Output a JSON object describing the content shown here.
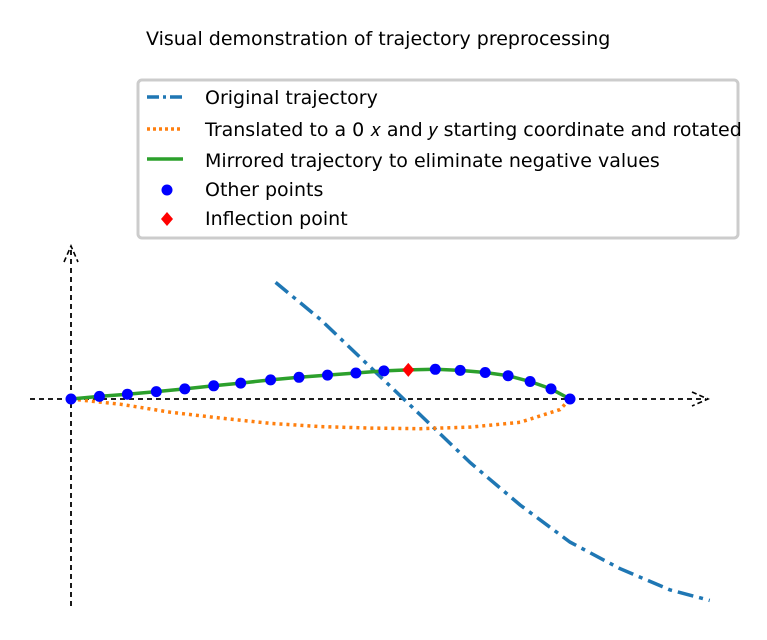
{
  "chart_data": {
    "type": "line",
    "title": "Visual demonstration of trajectory preprocessing",
    "xlabel": "",
    "ylabel": "",
    "grid": false,
    "legend_position": "top-right",
    "axes": {
      "xlim": [
        -0.07,
        1.3
      ],
      "ylim": [
        -0.4,
        0.3
      ],
      "style": "dashed arrows through origin",
      "ticks_shown": false
    },
    "legend": [
      {
        "label": "Original trajectory",
        "style": "dash-dot",
        "color": "#1f77b4"
      },
      {
        "label": "Translated to a 0 𝑥 and 𝑦 starting coordinate and rotated",
        "style": "dotted",
        "color": "#ff7f0e"
      },
      {
        "label": "Mirrored trajectory to eliminate negative values",
        "style": "solid",
        "color": "#2ca02c"
      },
      {
        "label": "Other points",
        "style": "circle-marker",
        "color": "#0000ff"
      },
      {
        "label": "Inflection point",
        "style": "diamond-marker",
        "color": "#ff0000"
      }
    ],
    "series": [
      {
        "name": "Original trajectory",
        "color": "#1f77b4",
        "style": "dash-dot",
        "points": [
          [
            0.41,
            0.22
          ],
          [
            0.5,
            0.15
          ],
          [
            0.6,
            0.06
          ],
          [
            0.7,
            -0.03
          ],
          [
            0.8,
            -0.12
          ],
          [
            0.9,
            -0.2
          ],
          [
            1.0,
            -0.27
          ],
          [
            1.1,
            -0.32
          ],
          [
            1.2,
            -0.36
          ],
          [
            1.28,
            -0.38
          ]
        ]
      },
      {
        "name": "Translated to a 0 𝑥 and 𝑦 starting coordinate and rotated",
        "color": "#ff7f0e",
        "style": "dotted",
        "points": [
          [
            0.0,
            0.0
          ],
          [
            0.1,
            -0.01
          ],
          [
            0.2,
            -0.025
          ],
          [
            0.3,
            -0.036
          ],
          [
            0.4,
            -0.046
          ],
          [
            0.5,
            -0.052
          ],
          [
            0.6,
            -0.055
          ],
          [
            0.7,
            -0.056
          ],
          [
            0.8,
            -0.053
          ],
          [
            0.9,
            -0.044
          ],
          [
            0.98,
            -0.02
          ],
          [
            1.0,
            0.0
          ]
        ]
      },
      {
        "name": "Mirrored trajectory to eliminate negative values",
        "color": "#2ca02c",
        "style": "solid",
        "points": [
          [
            0.0,
            0.0
          ],
          [
            0.057,
            0.005
          ],
          [
            0.113,
            0.009
          ],
          [
            0.171,
            0.014
          ],
          [
            0.228,
            0.019
          ],
          [
            0.286,
            0.025
          ],
          [
            0.34,
            0.03
          ],
          [
            0.4,
            0.036
          ],
          [
            0.457,
            0.041
          ],
          [
            0.514,
            0.045
          ],
          [
            0.571,
            0.049
          ],
          [
            0.627,
            0.053
          ],
          [
            0.676,
            0.055
          ],
          [
            0.73,
            0.056
          ],
          [
            0.78,
            0.054
          ],
          [
            0.83,
            0.05
          ],
          [
            0.876,
            0.044
          ],
          [
            0.92,
            0.033
          ],
          [
            0.962,
            0.019
          ],
          [
            1.0,
            0.0
          ]
        ]
      }
    ],
    "other_points": [
      [
        0.0,
        0.0
      ],
      [
        0.057,
        0.005
      ],
      [
        0.113,
        0.009
      ],
      [
        0.171,
        0.014
      ],
      [
        0.228,
        0.019
      ],
      [
        0.286,
        0.025
      ],
      [
        0.34,
        0.03
      ],
      [
        0.4,
        0.036
      ],
      [
        0.457,
        0.041
      ],
      [
        0.514,
        0.045
      ],
      [
        0.571,
        0.049
      ],
      [
        0.627,
        0.053
      ],
      [
        0.73,
        0.056
      ],
      [
        0.78,
        0.054
      ],
      [
        0.83,
        0.05
      ],
      [
        0.876,
        0.044
      ],
      [
        0.92,
        0.033
      ],
      [
        0.962,
        0.019
      ],
      [
        1.0,
        0.0
      ]
    ],
    "inflection_point": [
      0.676,
      0.055
    ]
  }
}
